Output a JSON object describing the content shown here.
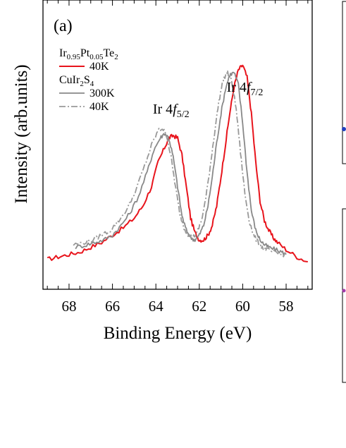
{
  "panel_label": "(a)",
  "chart_data": {
    "type": "line",
    "xlabel": "Binding Energy (eV)",
    "ylabel": "Intensity (arb.units)",
    "xlim": [
      69.2,
      56.8
    ],
    "x_reversed": true,
    "ylim": [
      0,
      1
    ],
    "x_ticks": [
      68,
      66,
      64,
      62,
      60,
      58
    ],
    "grid": false,
    "legend_placement": "top-left",
    "legend_groups": [
      {
        "compound": {
          "base": "Ir",
          "s1": "0.95",
          "m1": "Pt",
          "s2": "0.05",
          "m2": "Te",
          "s3": "2"
        },
        "entries": [
          {
            "label": "40K",
            "series": 0
          }
        ]
      },
      {
        "compound": {
          "base": "CuIr",
          "s1": "2",
          "m1": "S",
          "s2": "4",
          "m2": "",
          "s3": ""
        },
        "entries": [
          {
            "label": "300K",
            "series": 1
          },
          {
            "label": "40K",
            "series": 2
          }
        ]
      }
    ],
    "annotations": [
      {
        "text": "Ir 4",
        "f": "f",
        "sub": "5/2",
        "x": 63.3,
        "y": 0.7
      },
      {
        "text": "Ir 4",
        "f": "f",
        "sub": "7/2",
        "x": 59.9,
        "y": 0.79
      }
    ],
    "series": [
      {
        "color": "#e8141c",
        "dash": "",
        "width": 2,
        "x": [
          69.0,
          68.5,
          68.0,
          67.5,
          67.0,
          66.5,
          66.0,
          65.5,
          65.0,
          64.6,
          64.2,
          63.9,
          63.6,
          63.4,
          63.2,
          63.0,
          62.8,
          62.6,
          62.4,
          62.2,
          62.0,
          61.8,
          61.6,
          61.4,
          61.2,
          61.0,
          60.8,
          60.6,
          60.4,
          60.2,
          60.0,
          59.8,
          59.6,
          59.4,
          59.2,
          59.0,
          58.8,
          58.6,
          58.4,
          58.0,
          57.5,
          57.0
        ],
        "y": [
          0.1,
          0.11,
          0.12,
          0.13,
          0.15,
          0.17,
          0.2,
          0.23,
          0.27,
          0.32,
          0.4,
          0.5,
          0.56,
          0.6,
          0.61,
          0.6,
          0.53,
          0.4,
          0.27,
          0.21,
          0.18,
          0.18,
          0.2,
          0.24,
          0.32,
          0.44,
          0.57,
          0.7,
          0.81,
          0.88,
          0.9,
          0.85,
          0.7,
          0.5,
          0.34,
          0.26,
          0.22,
          0.19,
          0.17,
          0.14,
          0.11,
          0.09
        ]
      },
      {
        "color": "#888888",
        "dash": "",
        "width": 1.8,
        "x": [
          67.7,
          67.2,
          66.8,
          66.4,
          66.0,
          65.6,
          65.2,
          64.8,
          64.4,
          64.1,
          63.8,
          63.6,
          63.4,
          63.2,
          63.0,
          62.8,
          62.6,
          62.4,
          62.2,
          62.0,
          61.8,
          61.6,
          61.4,
          61.2,
          61.0,
          60.8,
          60.6,
          60.4,
          60.2,
          60.0,
          59.8,
          59.6,
          59.4,
          59.2,
          59.0,
          58.8,
          58.5,
          58.2,
          58.0
        ],
        "y": [
          0.15,
          0.16,
          0.17,
          0.18,
          0.2,
          0.24,
          0.29,
          0.36,
          0.46,
          0.55,
          0.6,
          0.62,
          0.6,
          0.52,
          0.4,
          0.28,
          0.22,
          0.19,
          0.18,
          0.2,
          0.24,
          0.32,
          0.44,
          0.58,
          0.7,
          0.8,
          0.86,
          0.87,
          0.82,
          0.66,
          0.46,
          0.3,
          0.22,
          0.18,
          0.16,
          0.15,
          0.14,
          0.13,
          0.12
        ]
      },
      {
        "color": "#999999",
        "dash": "9,3,2,3",
        "width": 1.8,
        "x": [
          67.8,
          67.3,
          66.9,
          66.5,
          66.1,
          65.7,
          65.3,
          64.9,
          64.5,
          64.2,
          63.9,
          63.7,
          63.5,
          63.3,
          63.1,
          62.9,
          62.7,
          62.5,
          62.3,
          62.1,
          61.9,
          61.7,
          61.5,
          61.3,
          61.1,
          60.9,
          60.7,
          60.5,
          60.3,
          60.1,
          59.9,
          59.7,
          59.5,
          59.3,
          59.1,
          58.9,
          58.6,
          58.3,
          58.0
        ],
        "y": [
          0.16,
          0.17,
          0.18,
          0.2,
          0.22,
          0.26,
          0.31,
          0.39,
          0.49,
          0.57,
          0.63,
          0.64,
          0.61,
          0.52,
          0.4,
          0.29,
          0.23,
          0.2,
          0.19,
          0.21,
          0.26,
          0.35,
          0.48,
          0.62,
          0.75,
          0.84,
          0.87,
          0.83,
          0.72,
          0.54,
          0.37,
          0.26,
          0.2,
          0.17,
          0.15,
          0.14,
          0.13,
          0.12,
          0.12
        ]
      }
    ]
  }
}
